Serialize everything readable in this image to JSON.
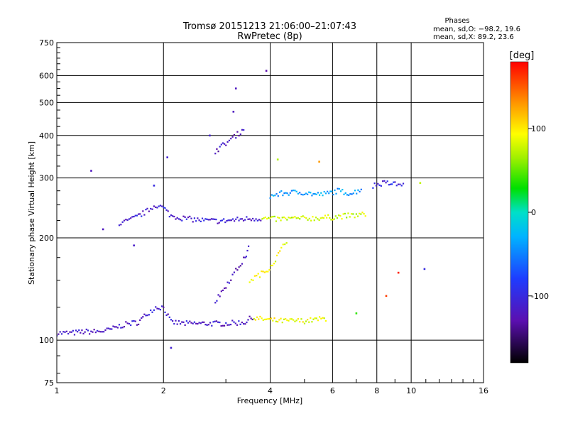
{
  "chart_data": {
    "type": "scatter",
    "title": "Tromsø 20151213 21:06:00–21:07:43",
    "subtitle": "RwPretec (8p)",
    "xlabel": "Frequency [MHz]",
    "ylabel": "Stationary phase Virtual Height [km]",
    "x_scale": "log",
    "y_scale": "log",
    "xlim": [
      1,
      16
    ],
    "ylim": [
      75,
      750
    ],
    "x_ticks": [
      1,
      2,
      4,
      6,
      8,
      10,
      16
    ],
    "x_tick_labels": [
      "1",
      "2",
      "4",
      "6",
      "8",
      "10",
      "16"
    ],
    "y_ticks": [
      75,
      100,
      200,
      300,
      400,
      500,
      600,
      750
    ],
    "y_tick_labels": [
      "75",
      "100",
      "200",
      "300",
      "400",
      "500",
      "600",
      "750"
    ],
    "grid": true,
    "colorbar": {
      "label": "[deg]",
      "range": [
        -180,
        180
      ],
      "ticks": [
        100,
        0,
        -100
      ],
      "tick_labels": [
        "100",
        "0",
        "-100"
      ]
    },
    "stats": {
      "heading": "Phases",
      "line_o": "mean, sd,O: −98.2, 19.6",
      "line_x": "mean, sd,X:  89.2, 23.6"
    },
    "traces": [
      {
        "x": [
          1.0,
          1.1,
          1.2,
          1.3,
          1.4,
          1.5,
          1.6,
          1.7,
          1.8,
          1.9,
          2.0,
          2.1,
          2.3,
          2.6,
          3.0,
          3.4,
          3.6
        ],
        "y": [
          105,
          105,
          106,
          106,
          107,
          110,
          112,
          113,
          120,
          125,
          125,
          113,
          112,
          112,
          112,
          113,
          118
        ],
        "phase": -115
      },
      {
        "x": [
          3.6,
          3.9,
          4.2,
          4.6,
          5.0,
          5.4,
          5.8
        ],
        "y": [
          116,
          115,
          114,
          114,
          114,
          115,
          116
        ],
        "phase": 90
      },
      {
        "x": [
          1.5,
          1.6,
          1.7,
          1.8,
          1.9,
          2.0,
          2.1,
          2.3,
          2.6,
          2.9,
          3.2,
          3.5,
          3.8
        ],
        "y": [
          220,
          225,
          232,
          240,
          250,
          245,
          232,
          228,
          225,
          224,
          226,
          228,
          228
        ],
        "phase": -110
      },
      {
        "x": [
          3.8,
          4.2,
          4.6,
          5.0,
          5.5,
          6.0,
          6.5,
          7.0,
          7.5
        ],
        "y": [
          228,
          227,
          228,
          228,
          229,
          230,
          232,
          233,
          235
        ],
        "phase": 80
      },
      {
        "x": [
          4.0,
          4.3,
          4.6,
          5.0,
          5.4,
          5.8,
          6.2,
          6.8,
          7.3
        ],
        "y": [
          265,
          270,
          272,
          272,
          268,
          270,
          275,
          270,
          280
        ],
        "phase": -40
      },
      {
        "x": [
          2.8,
          3.0,
          3.2,
          3.4,
          3.5
        ],
        "y": [
          130,
          145,
          160,
          175,
          190
        ],
        "phase": -120
      },
      {
        "x": [
          3.5,
          3.7,
          3.9,
          4.1,
          4.3,
          4.5
        ],
        "y": [
          150,
          155,
          160,
          170,
          185,
          200
        ],
        "phase": 95
      },
      {
        "x": [
          2.8,
          3.0,
          3.2,
          3.4
        ],
        "y": [
          360,
          380,
          400,
          420
        ],
        "phase": -120
      },
      {
        "x": [
          7.8,
          8.4,
          9.0,
          9.6
        ],
        "y": [
          285,
          290,
          288,
          285
        ],
        "phase": -100
      }
    ],
    "scatter": [
      {
        "x": 1.25,
        "y": 315,
        "phase": -120
      },
      {
        "x": 1.35,
        "y": 212,
        "phase": -120
      },
      {
        "x": 1.65,
        "y": 190,
        "phase": -115
      },
      {
        "x": 1.88,
        "y": 285,
        "phase": -100
      },
      {
        "x": 2.05,
        "y": 345,
        "phase": -110
      },
      {
        "x": 2.1,
        "y": 95,
        "phase": -110
      },
      {
        "x": 2.7,
        "y": 400,
        "phase": -110
      },
      {
        "x": 3.15,
        "y": 470,
        "phase": -120
      },
      {
        "x": 3.2,
        "y": 550,
        "phase": -120
      },
      {
        "x": 3.9,
        "y": 620,
        "phase": -130
      },
      {
        "x": 4.2,
        "y": 340,
        "phase": 70
      },
      {
        "x": 5.5,
        "y": 335,
        "phase": 130
      },
      {
        "x": 8.5,
        "y": 135,
        "phase": 160
      },
      {
        "x": 9.2,
        "y": 158,
        "phase": 170
      },
      {
        "x": 10.6,
        "y": 290,
        "phase": 75
      },
      {
        "x": 10.9,
        "y": 162,
        "phase": -100
      },
      {
        "x": 7.0,
        "y": 120,
        "phase": 40
      }
    ]
  }
}
